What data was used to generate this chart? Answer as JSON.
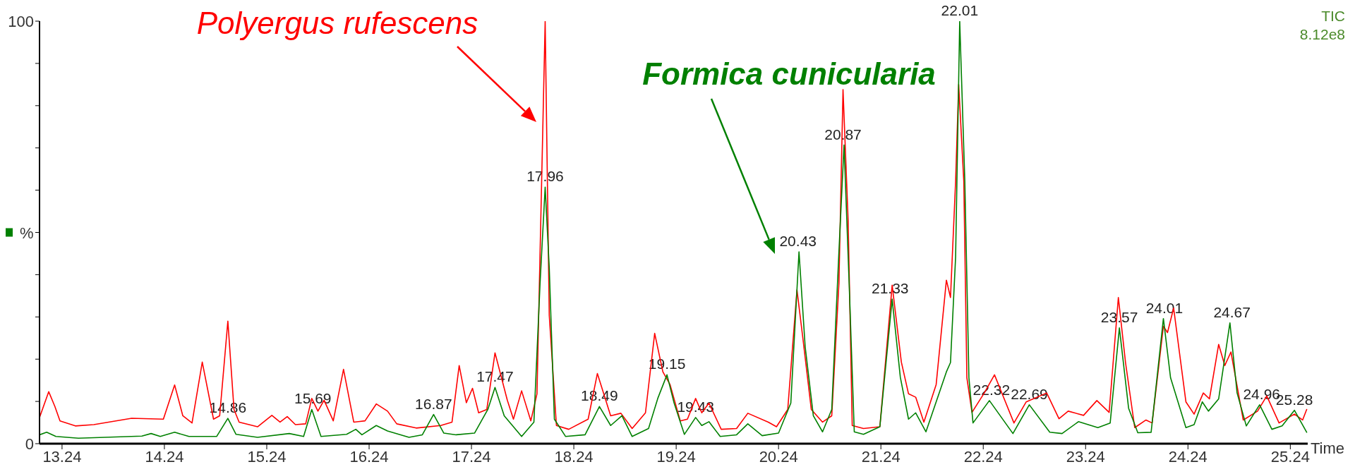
{
  "chart_data": {
    "type": "line",
    "xlabel": "Time",
    "ylabel": "%",
    "xlim": [
      13.02,
      25.41
    ],
    "xticks": [
      13.24,
      14.24,
      15.24,
      16.24,
      17.24,
      18.24,
      19.24,
      20.24,
      21.24,
      22.24,
      23.24,
      24.24,
      25.24
    ],
    "ylim": [
      0,
      100
    ],
    "yticks": [
      0,
      {
        "value": 10,
        "label": null
      },
      {
        "value": 20,
        "label": null
      },
      {
        "value": 30,
        "label": null
      },
      {
        "value": 40,
        "label": null
      },
      {
        "value": 50,
        "label": null
      },
      {
        "value": 60,
        "label": null
      },
      {
        "value": 70,
        "label": null
      },
      {
        "value": 80,
        "label": null
      },
      {
        "value": 90,
        "label": null
      },
      100
    ],
    "grid": false,
    "marker": "none",
    "line_style": "solid",
    "series": [
      {
        "name": "Polyergus rufescens",
        "color": "#ff0000",
        "x": [
          13.02,
          13.11,
          13.17,
          13.22,
          13.37,
          13.55,
          13.92,
          14.23,
          14.34,
          14.42,
          14.51,
          14.61,
          14.72,
          14.78,
          14.86,
          14.92,
          14.97,
          15.15,
          15.29,
          15.37,
          15.44,
          15.52,
          15.62,
          15.68,
          15.74,
          15.8,
          15.89,
          15.99,
          16.09,
          16.2,
          16.31,
          16.42,
          16.51,
          16.7,
          16.94,
          17.05,
          17.12,
          17.19,
          17.25,
          17.31,
          17.39,
          17.47,
          17.59,
          17.65,
          17.73,
          17.82,
          17.88,
          17.96,
          18.0,
          18.07,
          18.19,
          18.38,
          18.47,
          18.6,
          18.7,
          18.81,
          18.94,
          19.03,
          19.11,
          19.18,
          19.28,
          19.35,
          19.43,
          19.49,
          19.56,
          19.68,
          19.83,
          19.94,
          20.14,
          20.22,
          20.33,
          20.42,
          20.48,
          20.56,
          20.67,
          20.76,
          20.83,
          20.87,
          20.92,
          20.96,
          21.07,
          21.23,
          21.35,
          21.44,
          21.51,
          21.58,
          21.66,
          21.78,
          21.88,
          21.92,
          21.97,
          22.0,
          22.05,
          22.08,
          22.13,
          22.25,
          22.35,
          22.41,
          22.54,
          22.66,
          22.86,
          22.98,
          23.07,
          23.22,
          23.35,
          23.47,
          23.56,
          23.63,
          23.72,
          23.83,
          23.89,
          24.0,
          24.04,
          24.1,
          24.22,
          24.3,
          24.39,
          24.45,
          24.54,
          24.6,
          24.66,
          24.78,
          24.92,
          25.01,
          25.13,
          25.28,
          25.36,
          25.4
        ],
        "values": [
          6.2,
          12.3,
          8.8,
          5.4,
          4.2,
          4.5,
          6.0,
          5.8,
          13.9,
          6.6,
          4.9,
          19.3,
          5.8,
          6.6,
          29.0,
          8.1,
          5.1,
          4.0,
          6.7,
          5.1,
          6.4,
          4.5,
          4.7,
          10.7,
          7.7,
          10.3,
          5.4,
          17.6,
          5.1,
          5.4,
          9.4,
          7.7,
          4.7,
          3.7,
          4.3,
          5.1,
          18.5,
          9.7,
          13.1,
          7.3,
          8.1,
          21.5,
          10.3,
          5.8,
          12.5,
          5.4,
          11.8,
          100,
          30.4,
          4.3,
          3.4,
          5.8,
          16.6,
          6.6,
          7.2,
          3.6,
          7.3,
          26.1,
          17.0,
          14.0,
          5.4,
          5.8,
          10.7,
          7.3,
          9.6,
          3.4,
          3.6,
          7.2,
          5.1,
          4.0,
          8.1,
          36.4,
          24.5,
          8.1,
          5.1,
          6.6,
          37.9,
          83.8,
          52.8,
          4.3,
          3.6,
          4.0,
          37.5,
          19.3,
          11.8,
          11.0,
          5.1,
          14.0,
          38.7,
          34.6,
          62.1,
          85.0,
          62.1,
          15.6,
          7.4,
          12.0,
          16.3,
          12.7,
          4.9,
          9.9,
          12.0,
          5.9,
          7.7,
          6.7,
          10.2,
          7.4,
          34.6,
          19.2,
          3.8,
          5.6,
          4.9,
          27.8,
          26.3,
          32.1,
          9.9,
          7.0,
          12.0,
          10.6,
          23.5,
          18.5,
          21.7,
          5.6,
          7.7,
          11.3,
          4.9,
          7.0,
          5.6,
          8.1
        ]
      },
      {
        "name": "Formica cunicularia",
        "color": "#008000",
        "x": [
          13.02,
          13.09,
          13.18,
          13.4,
          14.02,
          14.11,
          14.2,
          14.34,
          14.48,
          14.75,
          14.86,
          14.94,
          15.15,
          15.46,
          15.6,
          15.68,
          15.77,
          16.02,
          16.11,
          16.17,
          16.31,
          16.42,
          16.63,
          16.76,
          16.87,
          16.97,
          17.09,
          17.27,
          17.4,
          17.47,
          17.56,
          17.73,
          17.85,
          17.91,
          17.96,
          18.0,
          18.05,
          18.16,
          18.35,
          18.49,
          18.6,
          18.71,
          18.81,
          18.97,
          19.06,
          19.15,
          19.22,
          19.32,
          19.43,
          19.49,
          19.56,
          19.67,
          19.83,
          19.94,
          20.08,
          20.24,
          20.36,
          20.44,
          20.5,
          20.58,
          20.67,
          20.76,
          20.83,
          20.88,
          20.93,
          20.98,
          21.07,
          21.23,
          21.35,
          21.43,
          21.51,
          21.58,
          21.68,
          21.88,
          21.92,
          21.97,
          22.01,
          22.06,
          22.1,
          22.14,
          22.3,
          22.53,
          22.69,
          22.89,
          23.01,
          23.17,
          23.36,
          23.48,
          23.57,
          23.66,
          23.75,
          23.88,
          24.0,
          24.07,
          24.22,
          24.3,
          24.38,
          24.44,
          24.54,
          24.65,
          24.72,
          24.81,
          24.94,
          25.06,
          25.16,
          25.28,
          25.4
        ],
        "values": [
          2.1,
          2.7,
          1.7,
          1.3,
          1.8,
          2.4,
          1.7,
          2.7,
          1.7,
          1.7,
          6.0,
          2.2,
          1.5,
          2.4,
          1.7,
          8.1,
          1.7,
          2.2,
          3.4,
          2.1,
          4.3,
          3.0,
          1.5,
          2.1,
          6.9,
          2.5,
          2.1,
          2.5,
          8.1,
          13.3,
          6.6,
          1.7,
          5.1,
          37.9,
          60.7,
          41.6,
          5.8,
          1.7,
          2.1,
          8.8,
          4.3,
          6.6,
          1.7,
          3.6,
          10.7,
          16.3,
          9.6,
          2.2,
          6.2,
          4.3,
          5.2,
          1.7,
          2.1,
          4.7,
          1.9,
          2.5,
          9.6,
          45.4,
          23.0,
          6.6,
          2.8,
          8.1,
          45.4,
          70.7,
          37.9,
          2.8,
          2.2,
          4.0,
          34.2,
          15.7,
          5.8,
          7.3,
          2.8,
          17.0,
          19.2,
          44.2,
          100,
          62.1,
          15.6,
          4.9,
          10.2,
          2.4,
          9.2,
          2.7,
          2.4,
          5.2,
          3.8,
          4.9,
          27.4,
          8.4,
          2.6,
          2.7,
          29.6,
          15.6,
          3.8,
          4.5,
          9.9,
          7.7,
          10.6,
          28.6,
          12.0,
          4.2,
          9.2,
          3.4,
          4.2,
          7.9,
          2.7
        ]
      }
    ],
    "annotations": [
      {
        "text": "14.86",
        "x": 14.86,
        "y": 6.0
      },
      {
        "text": "15.69",
        "x": 15.69,
        "y": 8.1
      },
      {
        "text": "16.87",
        "x": 16.87,
        "y": 6.9
      },
      {
        "text": "17.47",
        "x": 17.47,
        "y": 13.3
      },
      {
        "text": "17.96",
        "x": 17.96,
        "y": 60.7
      },
      {
        "text": "18.49",
        "x": 18.49,
        "y": 8.8
      },
      {
        "text": "19.15",
        "x": 19.15,
        "y": 16.3
      },
      {
        "text": "19.43",
        "x": 19.43,
        "y": 6.2
      },
      {
        "text": "20.43",
        "x": 20.43,
        "y": 45.4
      },
      {
        "text": "20.87",
        "x": 20.87,
        "y": 70.7
      },
      {
        "text": "21.33",
        "x": 21.33,
        "y": 34.2
      },
      {
        "text": "22.01",
        "x": 22.01,
        "y": 100
      },
      {
        "text": "22.32",
        "x": 22.32,
        "y": 10.2
      },
      {
        "text": "22.69",
        "x": 22.69,
        "y": 9.2
      },
      {
        "text": "23.57",
        "x": 23.57,
        "y": 27.4
      },
      {
        "text": "24.01",
        "x": 24.01,
        "y": 29.6
      },
      {
        "text": "24.67",
        "x": 24.67,
        "y": 28.6
      },
      {
        "text": "24.96",
        "x": 24.96,
        "y": 9.2
      },
      {
        "text": "25.28",
        "x": 25.28,
        "y": 7.9
      },
      "TIC",
      "8.12e8"
    ]
  }
}
